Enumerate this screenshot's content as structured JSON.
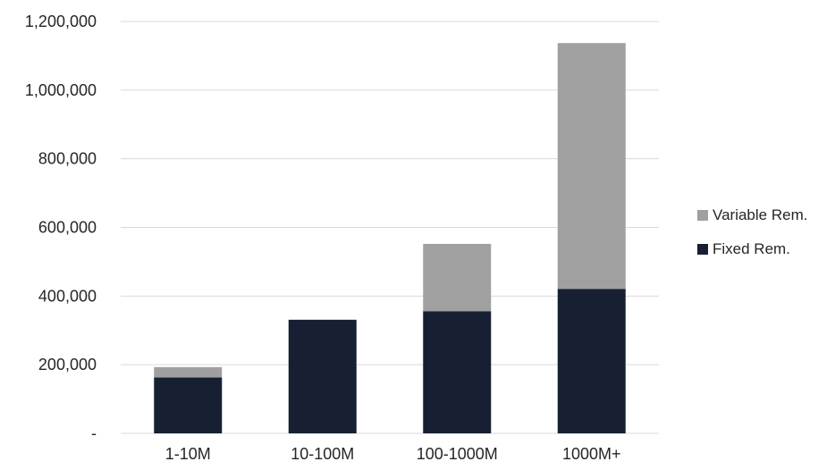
{
  "chart_data": {
    "type": "bar",
    "stacked": true,
    "categories": [
      "1-10M",
      "10-100M",
      "100-1000M",
      "1000M+"
    ],
    "series": [
      {
        "name": "Fixed Rem.",
        "color": "#172033",
        "values": [
          163000,
          331000,
          356000,
          421000
        ]
      },
      {
        "name": "Variable Rem.",
        "color": "#a0a0a0",
        "values": [
          30000,
          0,
          196000,
          716000
        ]
      }
    ],
    "ylim": [
      0,
      1200000
    ],
    "yticks": [
      {
        "value": 0,
        "label": "-"
      },
      {
        "value": 200000,
        "label": "200,000"
      },
      {
        "value": 400000,
        "label": "400,000"
      },
      {
        "value": 600000,
        "label": "600,000"
      },
      {
        "value": 800000,
        "label": "800,000"
      },
      {
        "value": 1000000,
        "label": "1,000,000"
      },
      {
        "value": 1200000,
        "label": "1,200,000"
      }
    ],
    "grid": true,
    "legend": "right",
    "legend_order": [
      "Variable Rem.",
      "Fixed Rem."
    ],
    "gridline_color": "#d9d9d9"
  }
}
